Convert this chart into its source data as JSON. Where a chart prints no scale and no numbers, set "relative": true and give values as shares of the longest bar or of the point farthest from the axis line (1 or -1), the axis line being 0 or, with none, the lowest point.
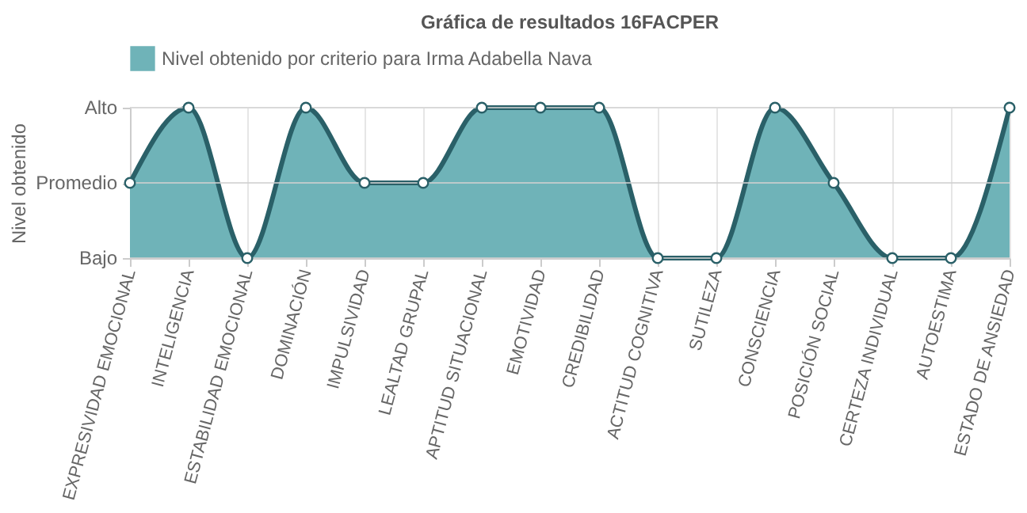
{
  "chart_data": {
    "type": "area",
    "title": "Gráfica de resultados 16FACPER",
    "ylabel": "Nivel obtenido",
    "categories": [
      "EXPRESIVIDAD EMOCIONAL",
      "INTELIGENCIA",
      "ESTABILIDAD EMOCIONAL",
      "DOMINACIÓN",
      "IMPULSIVIDAD",
      "LEALTAD GRUPAL",
      "APTITUD SITUACIONAL",
      "EMOTIVIDAD",
      "CREDIBILIDAD",
      "ACTITUD COGNITIVA",
      "SUTILEZA",
      "CONSCIENCIA",
      "POSICIÓN SOCIAL",
      "CERTEZA INDIVIDUAL",
      "AUTOESTIMA",
      "ESTADO DE ANSIEDAD"
    ],
    "series": [
      {
        "name": "Nivel obtenido por criterio para Irma Adabella Nava",
        "color": "#6fb3b8",
        "values": [
          0.5,
          1,
          0,
          1,
          0.5,
          0.5,
          1,
          1,
          1,
          0,
          0,
          1,
          0.5,
          0,
          0,
          1
        ]
      }
    ],
    "relative": true,
    "ref_lines": [
      {
        "axis": "y",
        "value": 0,
        "label": "Bajo",
        "color": "#cfcfcf"
      },
      {
        "axis": "y",
        "value": 0.5,
        "label": "Promedio",
        "color": "#cfcfcf"
      },
      {
        "axis": "y",
        "value": 1,
        "label": "Alto",
        "color": "#cfcfcf"
      }
    ],
    "grid": "x",
    "legend": "top",
    "marker": "circle",
    "line_style": "solid"
  }
}
